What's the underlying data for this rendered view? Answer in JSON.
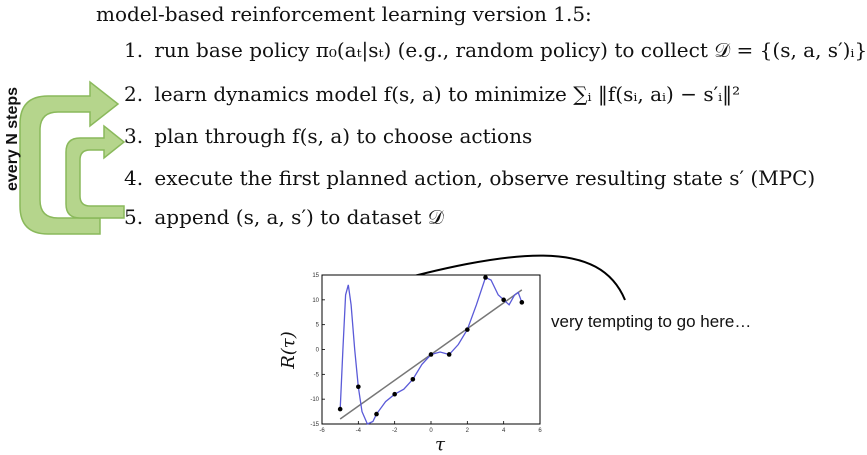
{
  "title": "model-based reinforcement learning version 1.5:",
  "steps": [
    {
      "num": "1.",
      "text": "run base policy π₀(aₜ|sₜ) (e.g., random policy) to collect 𝒟 = {(s, a, s′)ᵢ}"
    },
    {
      "num": "2.",
      "text": "learn dynamics model f(s, a) to minimize ∑ᵢ ‖f(sᵢ, aᵢ) − s′ᵢ‖²"
    },
    {
      "num": "3.",
      "text": "plan through f(s, a) to choose actions"
    },
    {
      "num": "4.",
      "text": "execute the first planned action, observe resulting state s′ (MPC)"
    },
    {
      "num": "5.",
      "text": "append (s, a, s′) to dataset 𝒟"
    }
  ],
  "side_label": "every N steps",
  "annotation": "very tempting to go here…",
  "colors": {
    "arrow_fill": "#b5d58c",
    "arrow_stroke": "#8ab95b",
    "curve": "#5a5ad8",
    "fit_line": "#777777"
  },
  "chart_data": {
    "type": "scatter",
    "xlabel": "τ",
    "ylabel": "R(τ)",
    "xlim": [
      -6,
      6
    ],
    "ylim": [
      -15,
      15
    ],
    "xticks": [
      -6,
      -4,
      -2,
      0,
      2,
      4,
      6
    ],
    "yticks": [
      15,
      10,
      5,
      0,
      -5,
      -10,
      -15
    ],
    "points": [
      {
        "x": -5.0,
        "y": -12.0
      },
      {
        "x": -4.0,
        "y": -7.5
      },
      {
        "x": -3.0,
        "y": -13.0
      },
      {
        "x": -2.0,
        "y": -9.0
      },
      {
        "x": -1.0,
        "y": -6.0
      },
      {
        "x": 0.0,
        "y": -1.0
      },
      {
        "x": 1.0,
        "y": -1.0
      },
      {
        "x": 2.0,
        "y": 4.0
      },
      {
        "x": 3.0,
        "y": 14.5
      },
      {
        "x": 4.0,
        "y": 10.0
      },
      {
        "x": 5.0,
        "y": 9.5
      }
    ],
    "fit_line": [
      {
        "x": -5.0,
        "y": -14.0
      },
      {
        "x": 5.0,
        "y": 12.0
      }
    ],
    "curve": [
      {
        "x": -5.0,
        "y": -12.0
      },
      {
        "x": -4.85,
        "y": 0.0
      },
      {
        "x": -4.7,
        "y": 11.0
      },
      {
        "x": -4.55,
        "y": 13.0
      },
      {
        "x": -4.4,
        "y": 9.0
      },
      {
        "x": -4.2,
        "y": 0.0
      },
      {
        "x": -4.0,
        "y": -7.5
      },
      {
        "x": -3.8,
        "y": -12.5
      },
      {
        "x": -3.5,
        "y": -15.0
      },
      {
        "x": -3.2,
        "y": -14.5
      },
      {
        "x": -3.0,
        "y": -13.0
      },
      {
        "x": -2.5,
        "y": -10.5
      },
      {
        "x": -2.0,
        "y": -9.0
      },
      {
        "x": -1.5,
        "y": -8.0
      },
      {
        "x": -1.0,
        "y": -6.0
      },
      {
        "x": -0.5,
        "y": -3.0
      },
      {
        "x": 0.0,
        "y": -1.0
      },
      {
        "x": 0.5,
        "y": -0.5
      },
      {
        "x": 1.0,
        "y": -1.0
      },
      {
        "x": 1.5,
        "y": 1.0
      },
      {
        "x": 2.0,
        "y": 4.0
      },
      {
        "x": 2.5,
        "y": 9.0
      },
      {
        "x": 3.0,
        "y": 14.5
      },
      {
        "x": 3.3,
        "y": 14.0
      },
      {
        "x": 3.7,
        "y": 11.0
      },
      {
        "x": 4.0,
        "y": 10.0
      },
      {
        "x": 4.3,
        "y": 9.0
      },
      {
        "x": 4.6,
        "y": 11.0
      },
      {
        "x": 4.8,
        "y": 11.5
      },
      {
        "x": 5.0,
        "y": 9.5
      }
    ]
  }
}
